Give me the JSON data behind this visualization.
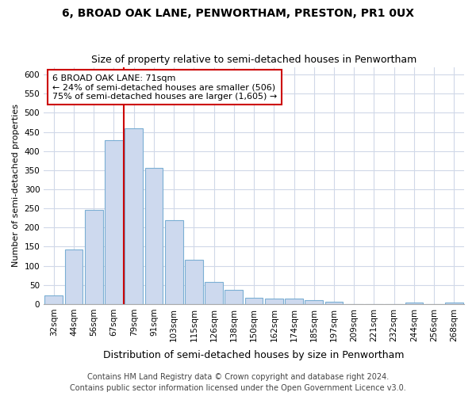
{
  "title": "6, BROAD OAK LANE, PENWORTHAM, PRESTON, PR1 0UX",
  "subtitle": "Size of property relative to semi-detached houses in Penwortham",
  "xlabel": "Distribution of semi-detached houses by size in Penwortham",
  "ylabel": "Number of semi-detached properties",
  "categories": [
    "32sqm",
    "44sqm",
    "56sqm",
    "67sqm",
    "79sqm",
    "91sqm",
    "103sqm",
    "115sqm",
    "126sqm",
    "138sqm",
    "150sqm",
    "162sqm",
    "174sqm",
    "185sqm",
    "197sqm",
    "209sqm",
    "221sqm",
    "232sqm",
    "244sqm",
    "256sqm",
    "268sqm"
  ],
  "values": [
    22,
    143,
    246,
    429,
    460,
    356,
    219,
    115,
    57,
    38,
    17,
    14,
    14,
    10,
    6,
    0,
    0,
    0,
    4,
    0,
    4
  ],
  "bar_color": "#cdd9ee",
  "bar_edge_color": "#7bafd4",
  "vline_color": "#cc0000",
  "annotation_title": "6 BROAD OAK LANE: 71sqm",
  "annotation_line1": "← 24% of semi-detached houses are smaller (506)",
  "annotation_line2": "75% of semi-detached houses are larger (1,605) →",
  "annotation_box_color": "#ffffff",
  "annotation_box_edge": "#cc0000",
  "ylim": [
    0,
    620
  ],
  "yticks": [
    0,
    50,
    100,
    150,
    200,
    250,
    300,
    350,
    400,
    450,
    500,
    550,
    600
  ],
  "footer1": "Contains HM Land Registry data © Crown copyright and database right 2024.",
  "footer2": "Contains public sector information licensed under the Open Government Licence v3.0.",
  "bg_color": "#ffffff",
  "fig_bg_color": "#ffffff",
  "grid_color": "#d0d8e8",
  "title_fontsize": 10,
  "subtitle_fontsize": 9,
  "xlabel_fontsize": 9,
  "ylabel_fontsize": 8,
  "tick_fontsize": 7.5,
  "footer_fontsize": 7,
  "ann_fontsize": 8
}
